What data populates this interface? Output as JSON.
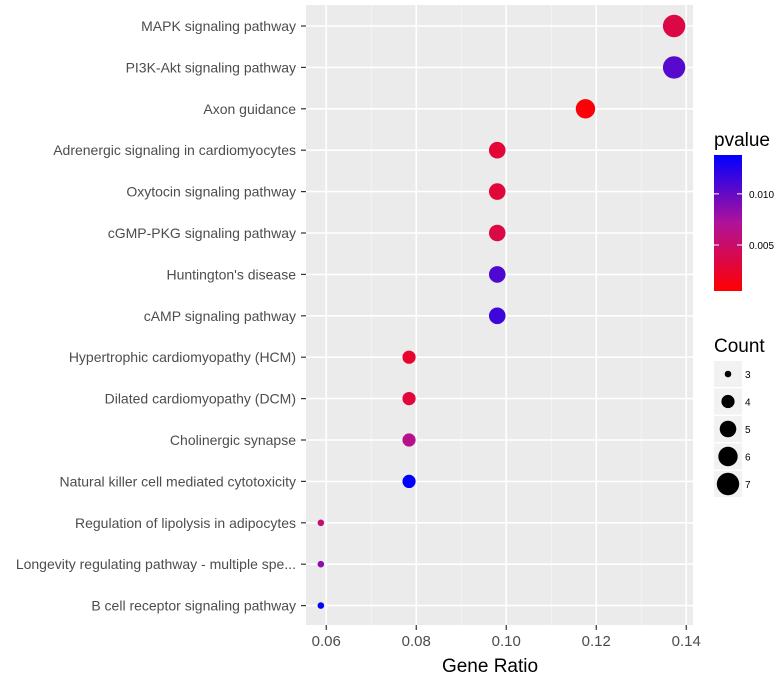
{
  "chart_data": {
    "type": "scatter",
    "xlabel": "Gene Ratio",
    "ylabel": "",
    "xlim": [
      0.0555,
      0.1415
    ],
    "x_ticks": [
      0.06,
      0.08,
      0.1,
      0.12,
      0.14
    ],
    "x_tick_labels": [
      "0.06",
      "0.08",
      "0.10",
      "0.12",
      "0.14"
    ],
    "grid": true,
    "categories": [
      "MAPK signaling pathway",
      "PI3K-Akt signaling pathway",
      "Axon guidance",
      "Adrenergic signaling in cardiomyocytes",
      "Oxytocin signaling pathway",
      "cGMP-PKG signaling pathway",
      "Huntington's disease",
      "cAMP signaling pathway",
      "Hypertrophic cardiomyopathy (HCM)",
      "Dilated cardiomyopathy (DCM)",
      "Cholinergic synapse",
      "Natural killer cell mediated cytotoxicity",
      "Regulation of lipolysis in adipocytes",
      "Longevity regulating pathway - multiple spe...",
      "B cell receptor signaling pathway"
    ],
    "points": [
      {
        "term": "MAPK signaling pathway",
        "gene_ratio": 0.1373,
        "count": 7,
        "pvalue": 0.0035
      },
      {
        "term": "PI3K-Akt signaling pathway",
        "gene_ratio": 0.1373,
        "count": 7,
        "pvalue": 0.0105
      },
      {
        "term": "Axon guidance",
        "gene_ratio": 0.1176,
        "count": 6,
        "pvalue": 0.0008
      },
      {
        "term": "Adrenergic signaling in cardiomyocytes",
        "gene_ratio": 0.098,
        "count": 5,
        "pvalue": 0.0028
      },
      {
        "term": "Oxytocin signaling pathway",
        "gene_ratio": 0.098,
        "count": 5,
        "pvalue": 0.003
      },
      {
        "term": "cGMP-PKG signaling pathway",
        "gene_ratio": 0.098,
        "count": 5,
        "pvalue": 0.0035
      },
      {
        "term": "Huntington's disease",
        "gene_ratio": 0.098,
        "count": 5,
        "pvalue": 0.0108
      },
      {
        "term": "cAMP signaling pathway",
        "gene_ratio": 0.098,
        "count": 5,
        "pvalue": 0.0115
      },
      {
        "term": "Hypertrophic cardiomyopathy (HCM)",
        "gene_ratio": 0.0784,
        "count": 4,
        "pvalue": 0.0025
      },
      {
        "term": "Dilated cardiomyopathy (DCM)",
        "gene_ratio": 0.0784,
        "count": 4,
        "pvalue": 0.003
      },
      {
        "term": "Cholinergic synapse",
        "gene_ratio": 0.0784,
        "count": 4,
        "pvalue": 0.0065
      },
      {
        "term": "Natural killer cell mediated cytotoxicity",
        "gene_ratio": 0.0784,
        "count": 4,
        "pvalue": 0.0138
      },
      {
        "term": "Regulation of lipolysis in adipocytes",
        "gene_ratio": 0.0588,
        "count": 3,
        "pvalue": 0.0055
      },
      {
        "term": "Longevity regulating pathway - multiple spe...",
        "gene_ratio": 0.0588,
        "count": 3,
        "pvalue": 0.0085
      },
      {
        "term": "B cell receptor signaling pathway",
        "gene_ratio": 0.0588,
        "count": 3,
        "pvalue": 0.0135
      }
    ],
    "color_legend": {
      "title": "pvalue",
      "min": 0.0005,
      "max": 0.0138,
      "low_color": "#ff0000",
      "high_color": "#0000ff",
      "ticks": [
        0.005,
        0.01
      ],
      "tick_labels": [
        "0.005",
        "0.010"
      ]
    },
    "size_legend": {
      "title": "Count",
      "values": [
        3,
        4,
        5,
        6,
        7
      ],
      "labels": [
        "3",
        "4",
        "5",
        "6",
        "7"
      ]
    },
    "colors": {
      "panel_background": "#ebebeb",
      "grid_major": "#ffffff",
      "point_low": "#ff0000",
      "point_high": "#0000ff"
    }
  }
}
